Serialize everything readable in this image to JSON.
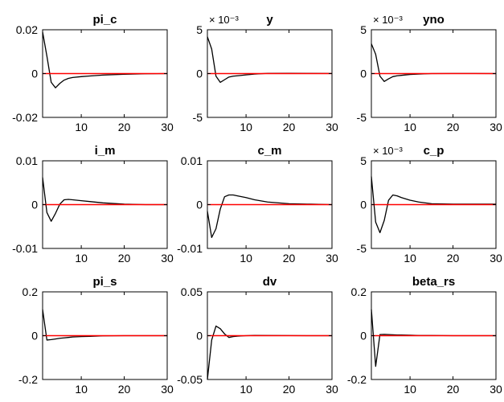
{
  "chart_data": [
    {
      "type": "line",
      "title": "pi_c",
      "ylim": [
        -0.02,
        0.02
      ],
      "yticks": [
        -0.02,
        0,
        0.02
      ],
      "ytick_labels": [
        "-0.02",
        "0",
        "0.02"
      ],
      "exponent_label": "",
      "xlim": [
        1,
        30
      ],
      "xticks": [
        10,
        20,
        30
      ],
      "xtick_labels": [
        "10",
        "20",
        "30"
      ],
      "x": [
        1,
        2,
        3,
        4,
        5,
        6,
        7,
        8,
        10,
        12,
        15,
        20,
        25,
        30
      ],
      "series": [
        {
          "color": "#000000",
          "values": [
            0.019,
            0.008,
            -0.004,
            -0.0065,
            -0.0045,
            -0.003,
            -0.0022,
            -0.0018,
            -0.0014,
            -0.0011,
            -0.0007,
            -0.0003,
            -0.0001,
            0
          ]
        },
        {
          "color": "#ff0000",
          "values": [
            0,
            0,
            0,
            0,
            0,
            0,
            0,
            0,
            0,
            0,
            0,
            0,
            0,
            0
          ]
        }
      ],
      "grid": false
    },
    {
      "type": "line",
      "title": "y",
      "ylim": [
        -5,
        5
      ],
      "yticks": [
        -5,
        0,
        5
      ],
      "ytick_labels": [
        "-5",
        "0",
        "5"
      ],
      "exponent_label": "× 10⁻³",
      "xlim": [
        1,
        30
      ],
      "xticks": [
        10,
        20,
        30
      ],
      "xtick_labels": [
        "10",
        "20",
        "30"
      ],
      "x": [
        1,
        2,
        3,
        4,
        5,
        6,
        7,
        8,
        10,
        12,
        15,
        20,
        25,
        30
      ],
      "series": [
        {
          "color": "#000000",
          "values": [
            4.2,
            2.8,
            -0.3,
            -1.0,
            -0.7,
            -0.4,
            -0.3,
            -0.25,
            -0.15,
            -0.05,
            0.02,
            0.03,
            0.02,
            0.01
          ]
        },
        {
          "color": "#ff0000",
          "values": [
            0,
            0,
            0,
            0,
            0,
            0,
            0,
            0,
            0,
            0,
            0,
            0,
            0,
            0
          ]
        }
      ],
      "grid": false
    },
    {
      "type": "line",
      "title": "yno",
      "ylim": [
        -5,
        5
      ],
      "yticks": [
        -5,
        0,
        5
      ],
      "ytick_labels": [
        "-5",
        "0",
        "5"
      ],
      "exponent_label": "× 10⁻³",
      "xlim": [
        1,
        30
      ],
      "xticks": [
        10,
        20,
        30
      ],
      "xtick_labels": [
        "10",
        "20",
        "30"
      ],
      "x": [
        1,
        2,
        3,
        4,
        5,
        6,
        7,
        8,
        10,
        12,
        15,
        20,
        25,
        30
      ],
      "series": [
        {
          "color": "#000000",
          "values": [
            3.4,
            2.2,
            -0.3,
            -0.9,
            -0.6,
            -0.35,
            -0.25,
            -0.2,
            -0.1,
            -0.05,
            0,
            0.01,
            0.01,
            0
          ]
        },
        {
          "color": "#ff0000",
          "values": [
            0,
            0,
            0,
            0,
            0,
            0,
            0,
            0,
            0,
            0,
            0,
            0,
            0,
            0
          ]
        }
      ],
      "grid": false
    },
    {
      "type": "line",
      "title": "i_m",
      "ylim": [
        -0.01,
        0.01
      ],
      "yticks": [
        -0.01,
        0,
        0.01
      ],
      "ytick_labels": [
        "-0.01",
        "0",
        "0.01"
      ],
      "exponent_label": "",
      "xlim": [
        1,
        30
      ],
      "xticks": [
        10,
        20,
        30
      ],
      "xtick_labels": [
        "10",
        "20",
        "30"
      ],
      "x": [
        1,
        2,
        3,
        4,
        5,
        6,
        7,
        8,
        10,
        12,
        15,
        20,
        25,
        30
      ],
      "series": [
        {
          "color": "#000000",
          "values": [
            0.0062,
            -0.0018,
            -0.0038,
            -0.002,
            0.0001,
            0.0011,
            0.0012,
            0.0011,
            0.0009,
            0.0007,
            0.0004,
            0.0001,
            0,
            0
          ]
        },
        {
          "color": "#ff0000",
          "values": [
            0,
            0,
            0,
            0,
            0,
            0,
            0,
            0,
            0,
            0,
            0,
            0,
            0,
            0
          ]
        }
      ],
      "grid": false
    },
    {
      "type": "line",
      "title": "c_m",
      "ylim": [
        -0.01,
        0.01
      ],
      "yticks": [
        -0.01,
        0,
        0.01
      ],
      "ytick_labels": [
        "-0.01",
        "0",
        "0.01"
      ],
      "exponent_label": "",
      "xlim": [
        1,
        30
      ],
      "xticks": [
        10,
        20,
        30
      ],
      "xtick_labels": [
        "10",
        "20",
        "30"
      ],
      "x": [
        1,
        2,
        3,
        4,
        5,
        6,
        7,
        8,
        10,
        12,
        15,
        20,
        25,
        30
      ],
      "series": [
        {
          "color": "#000000",
          "values": [
            -0.0015,
            -0.0075,
            -0.0055,
            -0.001,
            0.0018,
            0.0022,
            0.0022,
            0.002,
            0.0016,
            0.0011,
            0.0006,
            0.0002,
            0.0001,
            0
          ]
        },
        {
          "color": "#ff0000",
          "values": [
            0,
            0,
            0,
            0,
            0,
            0,
            0,
            0,
            0,
            0,
            0,
            0,
            0,
            0
          ]
        }
      ],
      "grid": false
    },
    {
      "type": "line",
      "title": "c_p",
      "ylim": [
        -5,
        5
      ],
      "yticks": [
        -5,
        0,
        5
      ],
      "ytick_labels": [
        "-5",
        "0",
        "5"
      ],
      "exponent_label": "× 10⁻³",
      "xlim": [
        1,
        30
      ],
      "xticks": [
        10,
        20,
        30
      ],
      "xtick_labels": [
        "10",
        "20",
        "30"
      ],
      "x": [
        1,
        2,
        3,
        4,
        5,
        6,
        7,
        8,
        10,
        12,
        15,
        20,
        25,
        30
      ],
      "series": [
        {
          "color": "#000000",
          "values": [
            3.2,
            -2.0,
            -3.2,
            -1.8,
            0.5,
            1.1,
            1.0,
            0.8,
            0.5,
            0.3,
            0.1,
            0.05,
            0.05,
            0.05
          ]
        },
        {
          "color": "#ff0000",
          "values": [
            0,
            0,
            0,
            0,
            0,
            0,
            0,
            0,
            0,
            0,
            0,
            0,
            0,
            0
          ]
        }
      ],
      "grid": false
    },
    {
      "type": "line",
      "title": "pi_s",
      "ylim": [
        -0.2,
        0.2
      ],
      "yticks": [
        -0.2,
        0,
        0.2
      ],
      "ytick_labels": [
        "-0.2",
        "0",
        "0.2"
      ],
      "exponent_label": "",
      "xlim": [
        1,
        30
      ],
      "xticks": [
        10,
        20,
        30
      ],
      "xtick_labels": [
        "10",
        "20",
        "30"
      ],
      "x": [
        1,
        2,
        3,
        4,
        5,
        6,
        7,
        8,
        10,
        12,
        15,
        20,
        25,
        30
      ],
      "series": [
        {
          "color": "#000000",
          "values": [
            0.12,
            -0.02,
            -0.018,
            -0.015,
            -0.012,
            -0.01,
            -0.008,
            -0.006,
            -0.004,
            -0.003,
            -0.001,
            0,
            0,
            0
          ]
        },
        {
          "color": "#ff0000",
          "values": [
            0,
            0,
            0,
            0,
            0,
            0,
            0,
            0,
            0,
            0,
            0,
            0,
            0,
            0
          ]
        }
      ],
      "grid": false
    },
    {
      "type": "line",
      "title": "dv",
      "ylim": [
        -0.05,
        0.05
      ],
      "yticks": [
        -0.05,
        0,
        0.05
      ],
      "ytick_labels": [
        "-0.05",
        "0",
        "0.05"
      ],
      "exponent_label": "",
      "xlim": [
        1,
        30
      ],
      "xticks": [
        10,
        20,
        30
      ],
      "xtick_labels": [
        "10",
        "20",
        "30"
      ],
      "x": [
        1,
        2,
        3,
        4,
        5,
        6,
        7,
        8,
        10,
        12,
        15,
        20,
        25,
        30
      ],
      "series": [
        {
          "color": "#000000",
          "values": [
            -0.05,
            -0.005,
            0.011,
            0.008,
            0.002,
            -0.002,
            -0.001,
            -0.0005,
            0,
            0.0003,
            0.0002,
            0.0001,
            0,
            0
          ]
        },
        {
          "color": "#ff0000",
          "values": [
            0,
            0,
            0,
            0,
            0,
            0,
            0,
            0,
            0,
            0,
            0,
            0,
            0,
            0
          ]
        }
      ],
      "grid": false
    },
    {
      "type": "line",
      "title": "beta_rs",
      "ylim": [
        -0.2,
        0.2
      ],
      "yticks": [
        -0.2,
        0,
        0.2
      ],
      "ytick_labels": [
        "-0.2",
        "0",
        "0.2"
      ],
      "exponent_label": "",
      "xlim": [
        1,
        30
      ],
      "xticks": [
        10,
        20,
        30
      ],
      "xtick_labels": [
        "10",
        "20",
        "30"
      ],
      "x": [
        1,
        2,
        3,
        4,
        5,
        6,
        7,
        8,
        10,
        12,
        15,
        20,
        25,
        30
      ],
      "series": [
        {
          "color": "#000000",
          "values": [
            0.12,
            -0.14,
            0.005,
            0.006,
            0.005,
            0.004,
            0.003,
            0.003,
            0.002,
            0.001,
            0.001,
            0,
            0,
            0
          ]
        },
        {
          "color": "#ff0000",
          "values": [
            0,
            0,
            0,
            0,
            0,
            0,
            0,
            0,
            0,
            0,
            0,
            0,
            0,
            0
          ]
        }
      ],
      "grid": false
    }
  ]
}
